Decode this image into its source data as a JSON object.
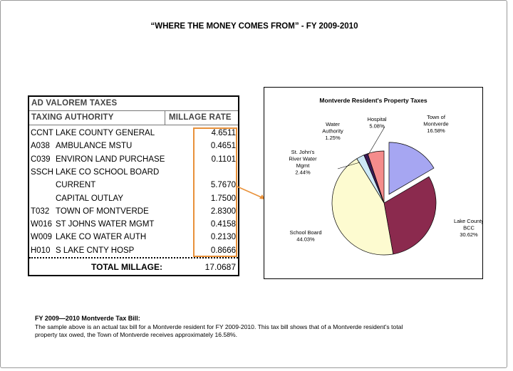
{
  "title": "“WHERE THE MONEY COMES FROM” - FY 2009-2010",
  "bill": {
    "section": "AD VALOREM TAXES",
    "col_authority": "TAXING AUTHORITY",
    "col_rate": "MILLAGE RATE",
    "rows": [
      {
        "code": "CCNT",
        "name": "LAKE COUNTY GENERAL",
        "rate": "4.6511"
      },
      {
        "code": "A038",
        "name": "AMBULANCE MSTU",
        "rate": "0.4651"
      },
      {
        "code": "C039",
        "name": "ENVIRON LAND PURCHASE",
        "rate": "0.1101"
      },
      {
        "code": "SSCH",
        "name": "LAKE CO SCHOOL BOARD",
        "rate": ""
      },
      {
        "code": "",
        "name": "CURRENT",
        "rate": "5.7670"
      },
      {
        "code": "",
        "name": "CAPITAL OUTLAY",
        "rate": "1.7500"
      },
      {
        "code": "T032",
        "name": "TOWN OF MONTVERDE",
        "rate": "2.8300"
      },
      {
        "code": "W016",
        "name": "ST JOHNS WATER MGMT",
        "rate": "0.4158"
      },
      {
        "code": "W009",
        "name": "LAKE CO WATER AUTH",
        "rate": "0.2130"
      },
      {
        "code": "H010",
        "name": "S LAKE CNTY HOSP",
        "rate": "0.8666"
      }
    ],
    "total_label": "TOTAL MILLAGE:",
    "total_value": "17.0687"
  },
  "chart_data": {
    "type": "pie",
    "title": "Montverde Resident's Property Taxes",
    "slices": [
      {
        "label": "Town of Montverde",
        "value": 16.58,
        "pct": "16.58%",
        "color": "#a6a6f2",
        "exploded": true
      },
      {
        "label": "Lake County BCC",
        "value": 30.62,
        "pct": "30.62%",
        "color": "#8b2a4e",
        "exploded": false
      },
      {
        "label": "School Board",
        "value": 44.03,
        "pct": "44.03%",
        "color": "#fdfbd0",
        "exploded": false
      },
      {
        "label": "St. John's River Water Mgmt",
        "value": 2.44,
        "pct": "2.44%",
        "color": "#cde8f7",
        "exploded": false
      },
      {
        "label": "Water Authority",
        "value": 1.25,
        "pct": "1.25%",
        "color": "#3a1a55",
        "exploded": false
      },
      {
        "label": "Hospital",
        "value": 5.08,
        "pct": "5.08%",
        "color": "#f48c8c",
        "exploded": false
      }
    ],
    "legend": "none"
  },
  "chart_labels": {
    "town": [
      "Town of",
      "Montverde",
      "16.58%"
    ],
    "lake": [
      "Lake County",
      "BCC",
      "30.62%"
    ],
    "school": [
      "School Board",
      "44.03%"
    ],
    "stjohn": [
      "St. John's",
      "River Water",
      "Mgmt",
      "2.44%"
    ],
    "water": [
      "Water",
      "Authority",
      "1.25%"
    ],
    "hospital": [
      "Hospital",
      "5.08%"
    ]
  },
  "footer": {
    "heading": "FY 2009—2010 Montverde Tax Bill:",
    "line1": "The sample above is an actual tax bill for a Montverde resident for FY 2009-2010.  This tax bill shows that of a Montverde resident's total",
    "line2": "property tax owed, the Town of Montverde receives approximately 16.58%."
  },
  "colors": {
    "highlight": "#e8913a"
  }
}
